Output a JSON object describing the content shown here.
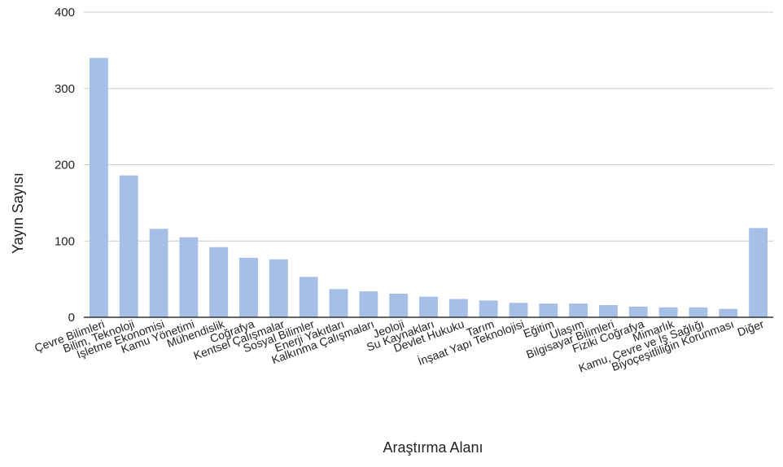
{
  "chart_data": {
    "type": "bar",
    "title": "",
    "xlabel": "Araştırma Alanı",
    "ylabel": "Yayın Sayısı",
    "ylim": [
      0,
      400
    ],
    "yticks": [
      "0",
      "100",
      "200",
      "300",
      "400"
    ],
    "grid": true,
    "categories": [
      "Çevre Bilimleri",
      "Bilim, Teknoloji",
      "İşletme Ekonomisi",
      "Kamu Yönetimi",
      "Mühendislik",
      "Coğrafya",
      "Kentsel Çalışmalar",
      "Sosyal Bilimler",
      "Enerji Yakıtları",
      "Kalkınma Çalışmaları",
      "Jeoloji",
      "Su Kaynakları",
      "Devlet Hukuku",
      "Tarım",
      "İnşaat Yapı Teknolojisi",
      "Eğitim",
      "Ulaşım",
      "Bilgisayar Bilimleri",
      "Fiziki Coğrafya",
      "Mimarlık",
      "Kamu, Çevre ve İş Sağlığı",
      "Biyoçeşitliliğin Korunması",
      "Diğer"
    ],
    "values": [
      340,
      186,
      116,
      105,
      92,
      78,
      76,
      53,
      37,
      34,
      31,
      27,
      24,
      22,
      19,
      18,
      18,
      16,
      14,
      13,
      13,
      11,
      117
    ],
    "colors": {
      "bar": "#a6bfe6",
      "grid": "#cccccc",
      "axis": "#333333"
    }
  }
}
